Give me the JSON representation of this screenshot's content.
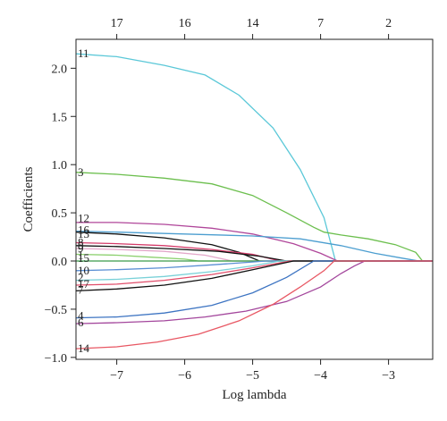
{
  "chart_data": {
    "type": "line",
    "xlabel": "Log lambda",
    "ylabel": "Coefficients",
    "xlim": [
      -7.6,
      -2.35
    ],
    "ylim": [
      -1.02,
      2.3
    ],
    "x_ticks": [
      -7,
      -6,
      -5,
      -4,
      -3
    ],
    "x_tick_labels": [
      "−7",
      "−6",
      "−5",
      "−4",
      "−3"
    ],
    "y_ticks": [
      -1.0,
      -0.5,
      0.0,
      0.5,
      1.0,
      1.5,
      2.0
    ],
    "y_tick_labels": [
      "−1.0",
      "−0.5",
      "0.0",
      "0.5",
      "1.0",
      "1.5",
      "2.0"
    ],
    "top_axis": {
      "title": "",
      "ticks": [
        -7.0,
        -6.0,
        -5.0,
        -4.0,
        -3.0
      ],
      "labels": [
        "17",
        "16",
        "14",
        "7",
        "2"
      ]
    },
    "series": [
      {
        "label": "11",
        "color": "#5bc8d8",
        "points": [
          [
            -7.6,
            2.15
          ],
          [
            -7.0,
            2.12
          ],
          [
            -6.3,
            2.03
          ],
          [
            -5.7,
            1.93
          ],
          [
            -5.2,
            1.72
          ],
          [
            -4.7,
            1.38
          ],
          [
            -4.3,
            0.95
          ],
          [
            -3.95,
            0.45
          ],
          [
            -3.78,
            0.0
          ],
          [
            -2.35,
            0.0
          ]
        ]
      },
      {
        "label": "3",
        "color": "#6cbf4e",
        "points": [
          [
            -7.6,
            0.92
          ],
          [
            -7.0,
            0.9
          ],
          [
            -6.3,
            0.86
          ],
          [
            -5.6,
            0.8
          ],
          [
            -5.0,
            0.68
          ],
          [
            -4.5,
            0.5
          ],
          [
            -4.1,
            0.35
          ],
          [
            -3.95,
            0.3
          ],
          [
            -3.7,
            0.27
          ],
          [
            -3.3,
            0.23
          ],
          [
            -2.9,
            0.17
          ],
          [
            -2.6,
            0.09
          ],
          [
            -2.5,
            0.0
          ],
          [
            -2.35,
            0.0
          ]
        ]
      },
      {
        "label": "12",
        "color": "#b0469a",
        "points": [
          [
            -7.6,
            0.4
          ],
          [
            -7.0,
            0.4
          ],
          [
            -6.3,
            0.38
          ],
          [
            -5.6,
            0.34
          ],
          [
            -5.0,
            0.28
          ],
          [
            -4.4,
            0.18
          ],
          [
            -4.0,
            0.08
          ],
          [
            -3.75,
            0.0
          ],
          [
            -2.35,
            0.0
          ]
        ]
      },
      {
        "label": "16",
        "color": "#4c9ed0",
        "points": [
          [
            -7.6,
            0.31
          ],
          [
            -7.0,
            0.3
          ],
          [
            -6.0,
            0.28
          ],
          [
            -5.0,
            0.26
          ],
          [
            -4.3,
            0.23
          ],
          [
            -3.7,
            0.16
          ],
          [
            -3.2,
            0.08
          ],
          [
            -2.8,
            0.03
          ],
          [
            -2.55,
            0.0
          ],
          [
            -2.35,
            0.0
          ]
        ]
      },
      {
        "label": "13",
        "color": "#111111",
        "points": [
          [
            -7.6,
            0.3
          ],
          [
            -7.0,
            0.28
          ],
          [
            -6.3,
            0.24
          ],
          [
            -5.6,
            0.17
          ],
          [
            -5.2,
            0.09
          ],
          [
            -4.9,
            0.0
          ],
          [
            -2.35,
            0.0
          ]
        ]
      },
      {
        "label": "8",
        "color": "#d43c6a",
        "points": [
          [
            -7.6,
            0.19
          ],
          [
            -7.0,
            0.18
          ],
          [
            -6.3,
            0.16
          ],
          [
            -5.6,
            0.12
          ],
          [
            -5.0,
            0.07
          ],
          [
            -4.6,
            0.0
          ],
          [
            -2.35,
            0.0
          ]
        ]
      },
      {
        "label": "5",
        "color": "#111111",
        "points": [
          [
            -7.6,
            0.16
          ],
          [
            -7.0,
            0.15
          ],
          [
            -6.3,
            0.13
          ],
          [
            -5.5,
            0.1
          ],
          [
            -4.9,
            0.05
          ],
          [
            -4.5,
            0.0
          ],
          [
            -2.35,
            0.0
          ]
        ]
      },
      {
        "label": "9",
        "color": "#e3a7c9",
        "points": [
          [
            -7.6,
            0.13
          ],
          [
            -7.0,
            0.12
          ],
          [
            -6.3,
            0.1
          ],
          [
            -5.7,
            0.06
          ],
          [
            -5.3,
            0.0
          ],
          [
            -2.35,
            0.0
          ]
        ]
      },
      {
        "label": "1",
        "color": "#8cd06e",
        "points": [
          [
            -7.6,
            0.07
          ],
          [
            -7.0,
            0.06
          ],
          [
            -6.5,
            0.04
          ],
          [
            -6.0,
            0.02
          ],
          [
            -5.8,
            0.0
          ],
          [
            -2.35,
            0.0
          ]
        ]
      },
      {
        "label": "15",
        "color": "#3a9a4b",
        "points": [
          [
            -7.6,
            0.0
          ],
          [
            -7.0,
            0.0
          ],
          [
            -6.0,
            0.0
          ],
          [
            -2.35,
            0.0
          ]
        ]
      },
      {
        "label": "10",
        "color": "#5b8fd4",
        "points": [
          [
            -7.6,
            -0.1
          ],
          [
            -7.0,
            -0.09
          ],
          [
            -6.3,
            -0.07
          ],
          [
            -5.6,
            -0.04
          ],
          [
            -5.0,
            -0.01
          ],
          [
            -4.8,
            0.0
          ],
          [
            -2.35,
            0.0
          ]
        ]
      },
      {
        "label": "2",
        "color": "#79d1d8",
        "points": [
          [
            -7.6,
            -0.2
          ],
          [
            -7.0,
            -0.19
          ],
          [
            -6.3,
            -0.16
          ],
          [
            -5.6,
            -0.11
          ],
          [
            -5.0,
            -0.05
          ],
          [
            -4.6,
            0.0
          ],
          [
            -2.35,
            0.0
          ]
        ]
      },
      {
        "label": "17",
        "color": "#e14d6a",
        "points": [
          [
            -7.6,
            -0.25
          ],
          [
            -7.0,
            -0.24
          ],
          [
            -6.3,
            -0.2
          ],
          [
            -5.6,
            -0.14
          ],
          [
            -5.0,
            -0.07
          ],
          [
            -4.45,
            0.0
          ],
          [
            -2.35,
            0.0
          ]
        ]
      },
      {
        "label": "7",
        "color": "#111111",
        "points": [
          [
            -7.6,
            -0.31
          ],
          [
            -7.0,
            -0.29
          ],
          [
            -6.3,
            -0.25
          ],
          [
            -5.6,
            -0.18
          ],
          [
            -5.0,
            -0.09
          ],
          [
            -4.4,
            0.0
          ],
          [
            -2.35,
            0.0
          ]
        ]
      },
      {
        "label": "4",
        "color": "#3d74c2",
        "points": [
          [
            -7.6,
            -0.59
          ],
          [
            -7.0,
            -0.58
          ],
          [
            -6.3,
            -0.54
          ],
          [
            -5.6,
            -0.46
          ],
          [
            -5.0,
            -0.33
          ],
          [
            -4.5,
            -0.17
          ],
          [
            -4.1,
            0.0
          ],
          [
            -2.35,
            0.0
          ]
        ]
      },
      {
        "label": "6",
        "color": "#a3469c",
        "points": [
          [
            -7.6,
            -0.65
          ],
          [
            -7.0,
            -0.64
          ],
          [
            -6.3,
            -0.62
          ],
          [
            -5.7,
            -0.58
          ],
          [
            -5.1,
            -0.52
          ],
          [
            -4.5,
            -0.42
          ],
          [
            -4.0,
            -0.27
          ],
          [
            -3.7,
            -0.13
          ],
          [
            -3.5,
            -0.05
          ],
          [
            -3.35,
            0.0
          ],
          [
            -2.35,
            0.0
          ]
        ]
      },
      {
        "label": "14",
        "color": "#e85763",
        "points": [
          [
            -7.6,
            -0.91
          ],
          [
            -7.0,
            -0.89
          ],
          [
            -6.4,
            -0.84
          ],
          [
            -5.8,
            -0.76
          ],
          [
            -5.2,
            -0.62
          ],
          [
            -4.7,
            -0.45
          ],
          [
            -4.3,
            -0.27
          ],
          [
            -3.95,
            -0.1
          ],
          [
            -3.8,
            0.0
          ],
          [
            -2.35,
            0.0
          ]
        ]
      }
    ],
    "curve_labels": [
      {
        "text": "11",
        "y": 2.15
      },
      {
        "text": "3",
        "y": 0.92
      },
      {
        "text": "12",
        "y": 0.44
      },
      {
        "text": "16",
        "y": 0.32
      },
      {
        "text": "13",
        "y": 0.28
      },
      {
        "text": "8",
        "y": 0.19
      },
      {
        "text": "5",
        "y": 0.16
      },
      {
        "text": "9",
        "y": 0.13
      },
      {
        "text": "1",
        "y": 0.06
      },
      {
        "text": "15",
        "y": 0.03
      },
      {
        "text": "10",
        "y": -0.1
      },
      {
        "text": "2",
        "y": -0.17
      },
      {
        "text": "17",
        "y": -0.24
      },
      {
        "text": "7",
        "y": -0.3
      },
      {
        "text": "4",
        "y": -0.57
      },
      {
        "text": "6",
        "y": -0.64
      },
      {
        "text": "14",
        "y": -0.91
      }
    ]
  }
}
